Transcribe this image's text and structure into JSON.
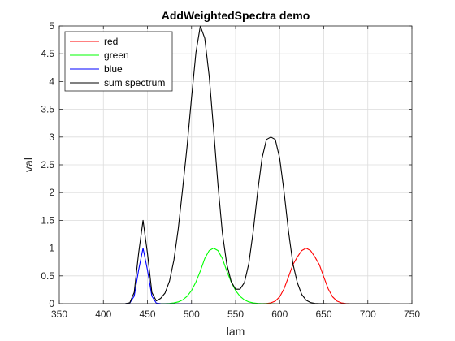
{
  "chart_data": {
    "type": "line",
    "title": "AddWeightedSpectra demo",
    "xlabel": "lam",
    "ylabel": "val",
    "xlim": [
      350,
      750
    ],
    "ylim": [
      0,
      5
    ],
    "xticks": [
      "350",
      "400",
      "450",
      "500",
      "550",
      "600",
      "650",
      "700",
      "750"
    ],
    "yticks": [
      "0",
      "0.5",
      "1",
      "1.5",
      "2",
      "2.5",
      "3",
      "3.5",
      "4",
      "4.5",
      "5"
    ],
    "grid": true,
    "legend_position": "top-left",
    "x_step": 5,
    "series": [
      {
        "name": "red",
        "color": "#ff0000",
        "x_start": 580,
        "values": [
          0,
          0.0034,
          0.014,
          0.046,
          0.1231,
          0.2691,
          0.4808,
          0.7022,
          0.8395,
          0.956,
          1.0,
          0.956,
          0.8395,
          0.7022,
          0.4808,
          0.2691,
          0.1231,
          0.046,
          0.014,
          0.0034,
          0
        ]
      },
      {
        "name": "green",
        "color": "#00ff00",
        "x_start": 465,
        "values": [
          0.0006,
          0.0019,
          0.0054,
          0.0136,
          0.0317,
          0.0677,
          0.1323,
          0.2371,
          0.3898,
          0.5878,
          0.8125,
          0.956,
          1.0,
          0.956,
          0.8125,
          0.5878,
          0.3898,
          0.2371,
          0.1323,
          0.0677,
          0.0317,
          0.0136,
          0.0054,
          0.0019,
          0.0006,
          0.0002,
          0.0001
        ]
      },
      {
        "name": "blue",
        "color": "#0000ff",
        "x_start": 400,
        "values": [
          0,
          0,
          0,
          0,
          0,
          0.0003,
          0.0111,
          0.1353,
          0.6065,
          1.0,
          0.6065,
          0.1353,
          0.0111,
          0.0003,
          0,
          0,
          0,
          0,
          0,
          0,
          0
        ]
      },
      {
        "name": "sum spectrum",
        "color": "#000000",
        "x_start": 400,
        "values": [
          0,
          0,
          0,
          0,
          0.0001,
          0.0005,
          0.0167,
          0.203,
          0.9098,
          1.5,
          0.9098,
          0.203,
          0.0501,
          0.0951,
          0.1923,
          0.4047,
          0.7841,
          1.3567,
          2.0811,
          2.8367,
          3.7065,
          4.5212,
          5.0,
          4.7802,
          4.102,
          3.1436,
          2.138,
          1.2742,
          0.7099,
          0.3986,
          0.2599,
          0.26,
          0.3786,
          0.7227,
          1.304,
          2.0111,
          2.621,
          2.9561,
          3.0,
          2.9561,
          2.621,
          2.0111,
          1.304,
          0.7227,
          0.3786,
          0.1662,
          0.0625,
          0.02,
          0.0055,
          0.0013,
          0.0003,
          0.0001,
          0,
          0,
          0,
          0,
          0,
          0,
          0,
          0,
          0,
          0,
          0,
          0,
          0,
          0
        ]
      }
    ]
  }
}
